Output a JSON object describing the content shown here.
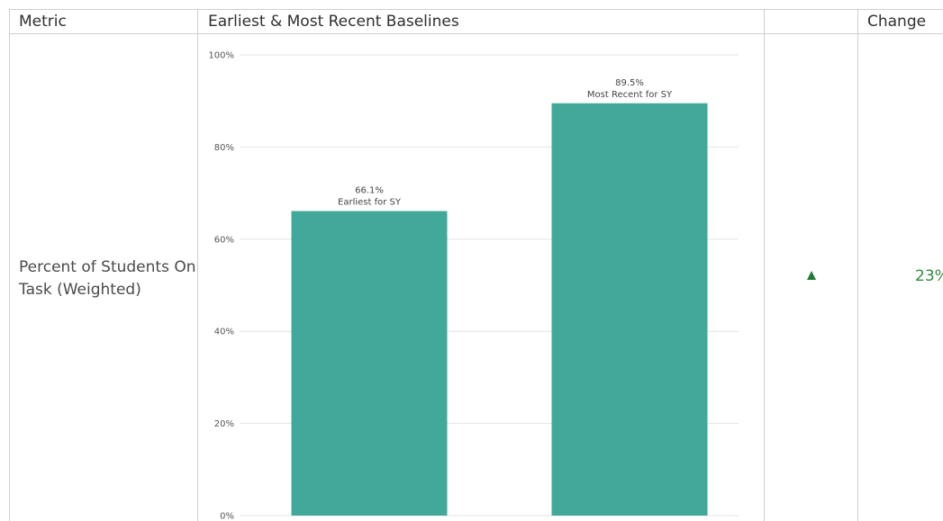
{
  "headers": {
    "metric": "Metric",
    "baselines": "Earliest & Most Recent Baselines",
    "trend": "",
    "change": "Change"
  },
  "row": {
    "metric_name": "Percent of Students On Task (Weighted)",
    "change_value": "23%",
    "change_direction": "up"
  },
  "colors": {
    "bar": "#42a89a",
    "grid": "#e3e3e3",
    "change_green": "#2e8b3f",
    "border": "#cfcfcf"
  },
  "chart_data": {
    "type": "bar",
    "categories": [
      "Earliest for SY",
      "Most Recent for SY"
    ],
    "values": [
      66.1,
      89.5
    ],
    "value_labels": [
      "66.1%",
      "89.5%"
    ],
    "yticks": [
      "0%",
      "20%",
      "40%",
      "60%",
      "80%",
      "100%"
    ],
    "ylim": [
      0,
      100
    ],
    "title": "",
    "xlabel": "",
    "ylabel": "",
    "grid": true
  }
}
